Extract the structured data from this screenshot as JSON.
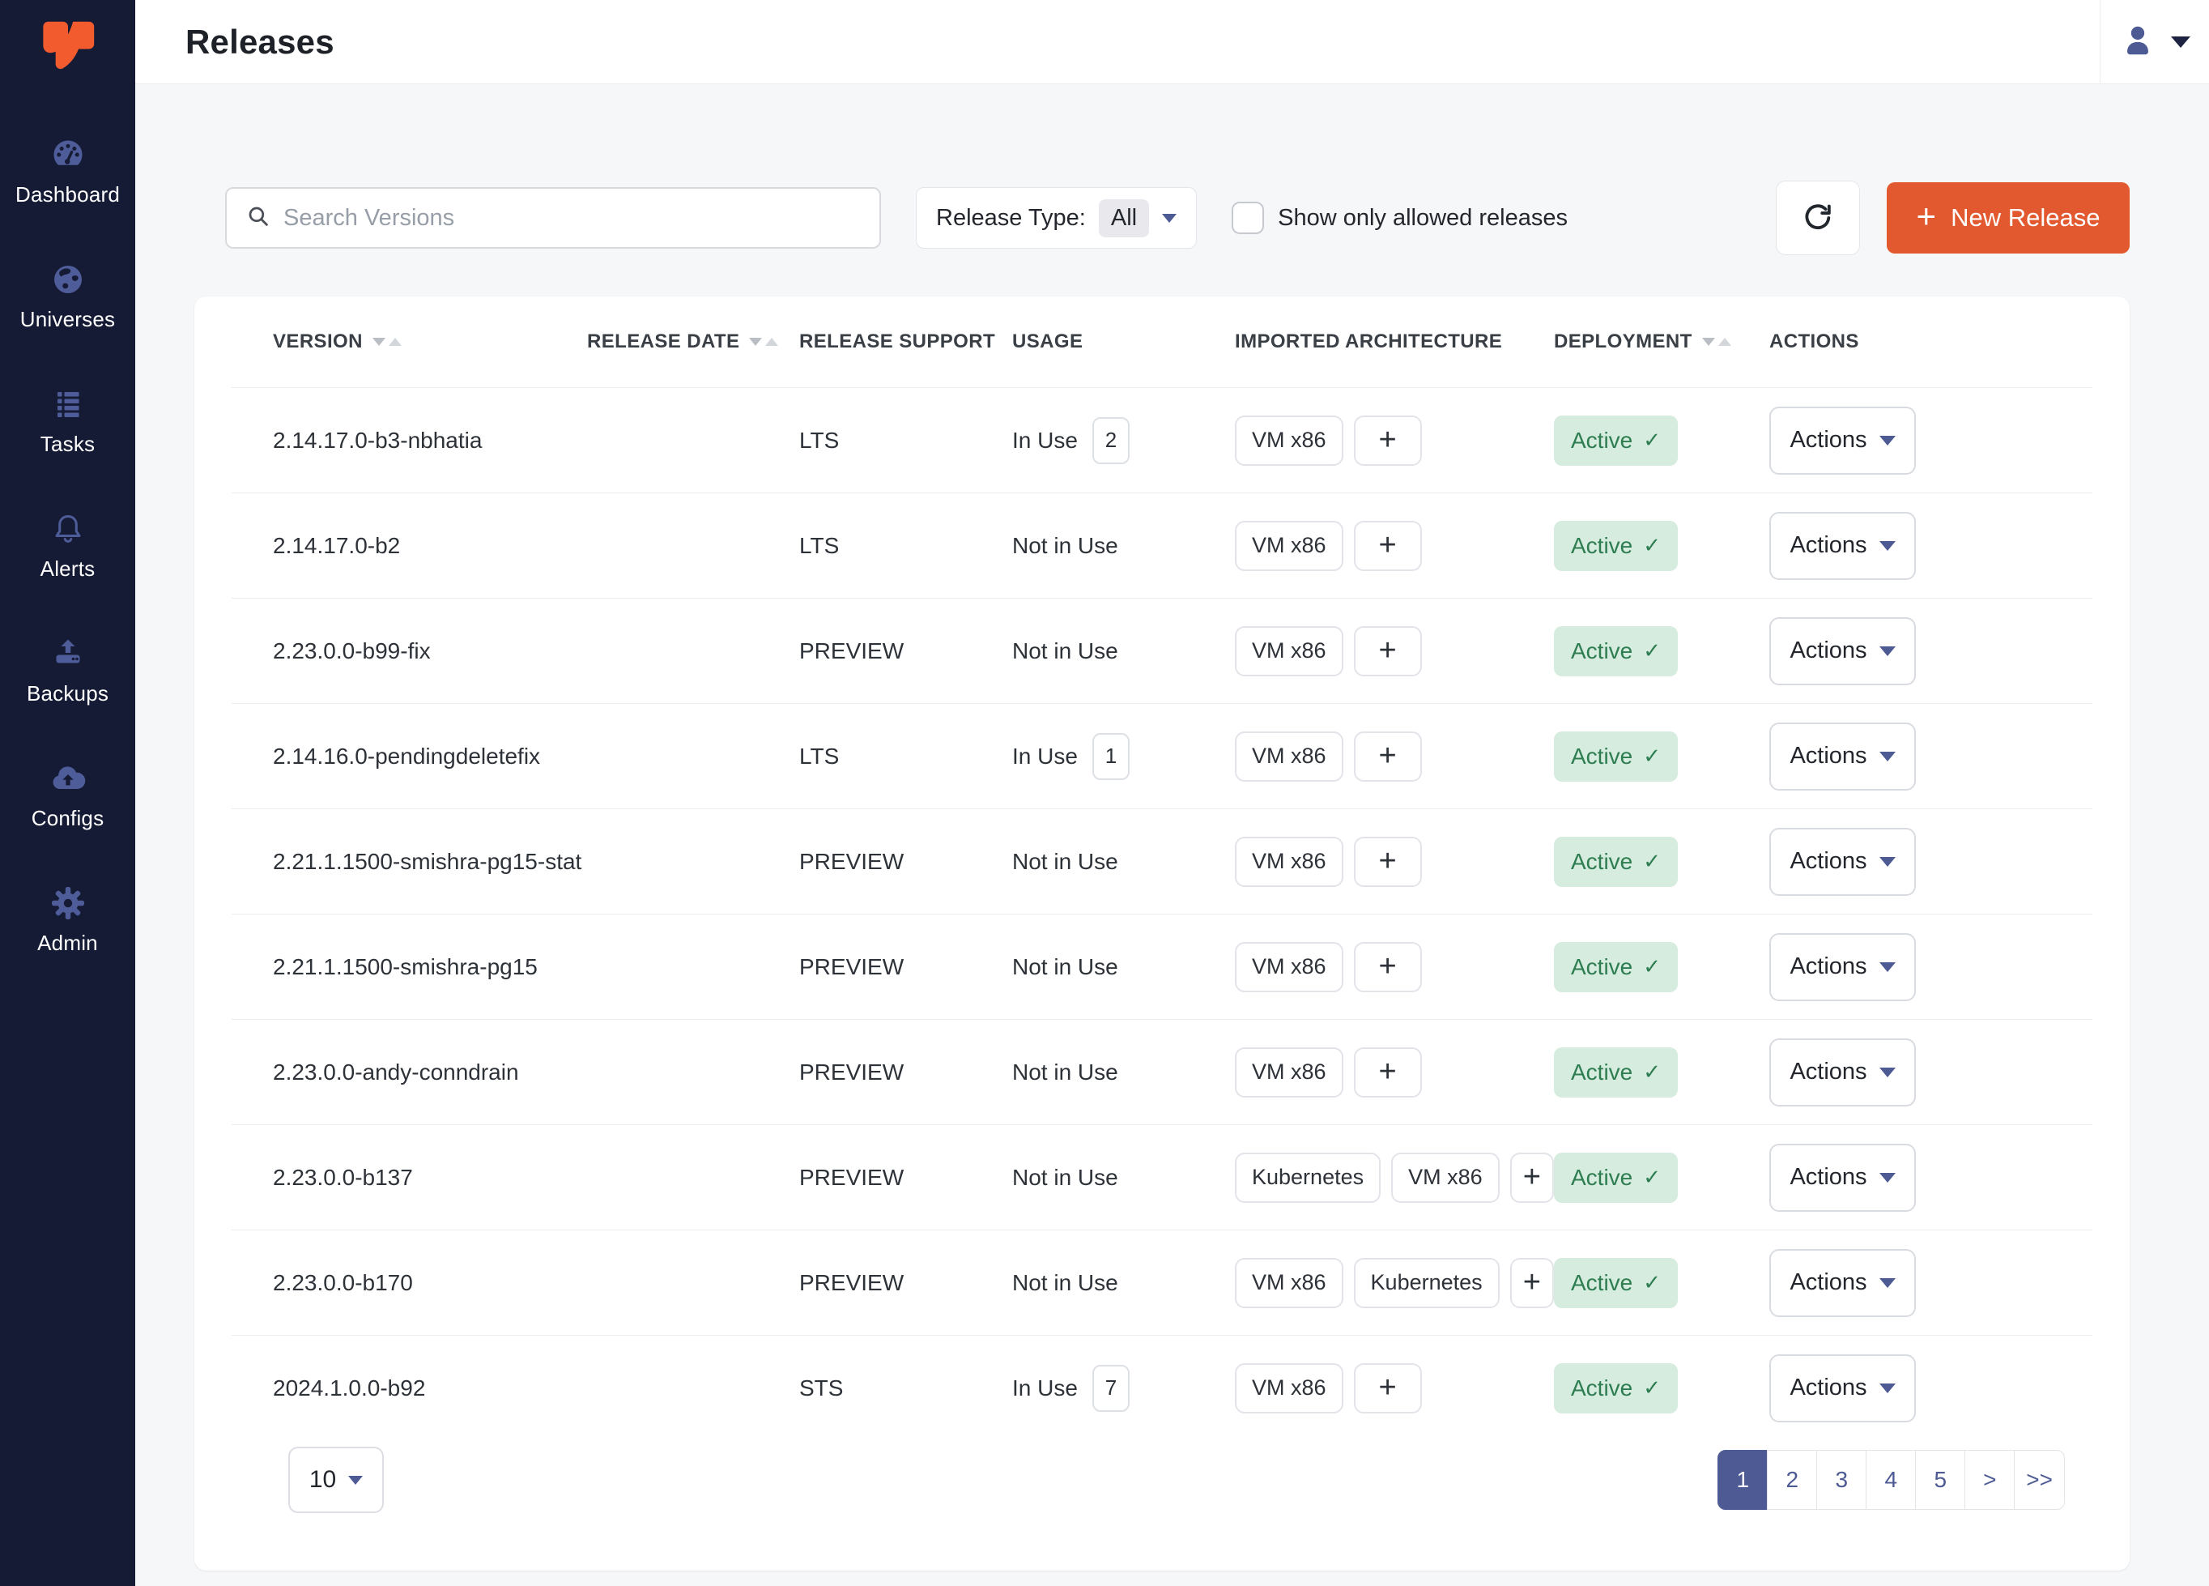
{
  "colors": {
    "sidebar_bg": "#161B35",
    "accent_orange": "#E2592F",
    "indigo": "#4D5A93",
    "active_badge_bg": "#D6ECDF",
    "active_badge_text": "#2E7D51",
    "page_bg": "#F6F7F8"
  },
  "header": {
    "title": "Releases"
  },
  "sidebar": {
    "items": [
      {
        "id": "dashboard",
        "label": "Dashboard",
        "icon": "dashboard-gauge-icon"
      },
      {
        "id": "universes",
        "label": "Universes",
        "icon": "globe-icon"
      },
      {
        "id": "tasks",
        "label": "Tasks",
        "icon": "list-icon"
      },
      {
        "id": "alerts",
        "label": "Alerts",
        "icon": "bell-icon"
      },
      {
        "id": "backups",
        "label": "Backups",
        "icon": "upload-drive-icon"
      },
      {
        "id": "configs",
        "label": "Configs",
        "icon": "cloud-upload-icon"
      },
      {
        "id": "admin",
        "label": "Admin",
        "icon": "gear-icon"
      }
    ]
  },
  "toolbar": {
    "search_placeholder": "Search Versions",
    "release_type_label": "Release Type:",
    "release_type_value": "All",
    "show_only_label": "Show only allowed releases",
    "show_only_checked": false,
    "new_release_plus": "+",
    "new_release_label": "New Release"
  },
  "table": {
    "columns": [
      {
        "label": "VERSION",
        "sortable": true
      },
      {
        "label": "RELEASE DATE",
        "sortable": true
      },
      {
        "label": "RELEASE SUPPORT",
        "sortable": false
      },
      {
        "label": "USAGE",
        "sortable": false
      },
      {
        "label": "IMPORTED ARCHITECTURE",
        "sortable": false
      },
      {
        "label": "DEPLOYMENT",
        "sortable": true
      },
      {
        "label": "ACTIONS",
        "sortable": false
      }
    ],
    "actions_label": "Actions",
    "add_architecture_label": "+",
    "deployment_check": "✓",
    "rows": [
      {
        "version": "2.14.17.0-b3-nbhatia",
        "release_date": "",
        "support": "LTS",
        "usage": "In Use",
        "usage_count": "2",
        "architectures": [
          "VM x86"
        ],
        "deployment": "Active"
      },
      {
        "version": "2.14.17.0-b2",
        "release_date": "",
        "support": "LTS",
        "usage": "Not in Use",
        "usage_count": null,
        "architectures": [
          "VM x86"
        ],
        "deployment": "Active"
      },
      {
        "version": "2.23.0.0-b99-fix",
        "release_date": "",
        "support": "PREVIEW",
        "usage": "Not in Use",
        "usage_count": null,
        "architectures": [
          "VM x86"
        ],
        "deployment": "Active"
      },
      {
        "version": "2.14.16.0-pendingdeletefix",
        "release_date": "",
        "support": "LTS",
        "usage": "In Use",
        "usage_count": "1",
        "architectures": [
          "VM x86"
        ],
        "deployment": "Active"
      },
      {
        "version": "2.21.1.1500-smishra-pg15-stat",
        "release_date": "",
        "support": "PREVIEW",
        "usage": "Not in Use",
        "usage_count": null,
        "architectures": [
          "VM x86"
        ],
        "deployment": "Active"
      },
      {
        "version": "2.21.1.1500-smishra-pg15",
        "release_date": "",
        "support": "PREVIEW",
        "usage": "Not in Use",
        "usage_count": null,
        "architectures": [
          "VM x86"
        ],
        "deployment": "Active"
      },
      {
        "version": "2.23.0.0-andy-conndrain",
        "release_date": "",
        "support": "PREVIEW",
        "usage": "Not in Use",
        "usage_count": null,
        "architectures": [
          "VM x86"
        ],
        "deployment": "Active"
      },
      {
        "version": "2.23.0.0-b137",
        "release_date": "",
        "support": "PREVIEW",
        "usage": "Not in Use",
        "usage_count": null,
        "architectures": [
          "Kubernetes",
          "VM x86"
        ],
        "deployment": "Active"
      },
      {
        "version": "2.23.0.0-b170",
        "release_date": "",
        "support": "PREVIEW",
        "usage": "Not in Use",
        "usage_count": null,
        "architectures": [
          "VM x86",
          "Kubernetes"
        ],
        "deployment": "Active"
      },
      {
        "version": "2024.1.0.0-b92",
        "release_date": "",
        "support": "STS",
        "usage": "In Use",
        "usage_count": "7",
        "architectures": [
          "VM x86"
        ],
        "deployment": "Active"
      }
    ]
  },
  "pagination": {
    "page_size": "10",
    "pages": [
      "1",
      "2",
      "3",
      "4",
      "5",
      ">",
      ">>"
    ],
    "active_page": "1"
  }
}
